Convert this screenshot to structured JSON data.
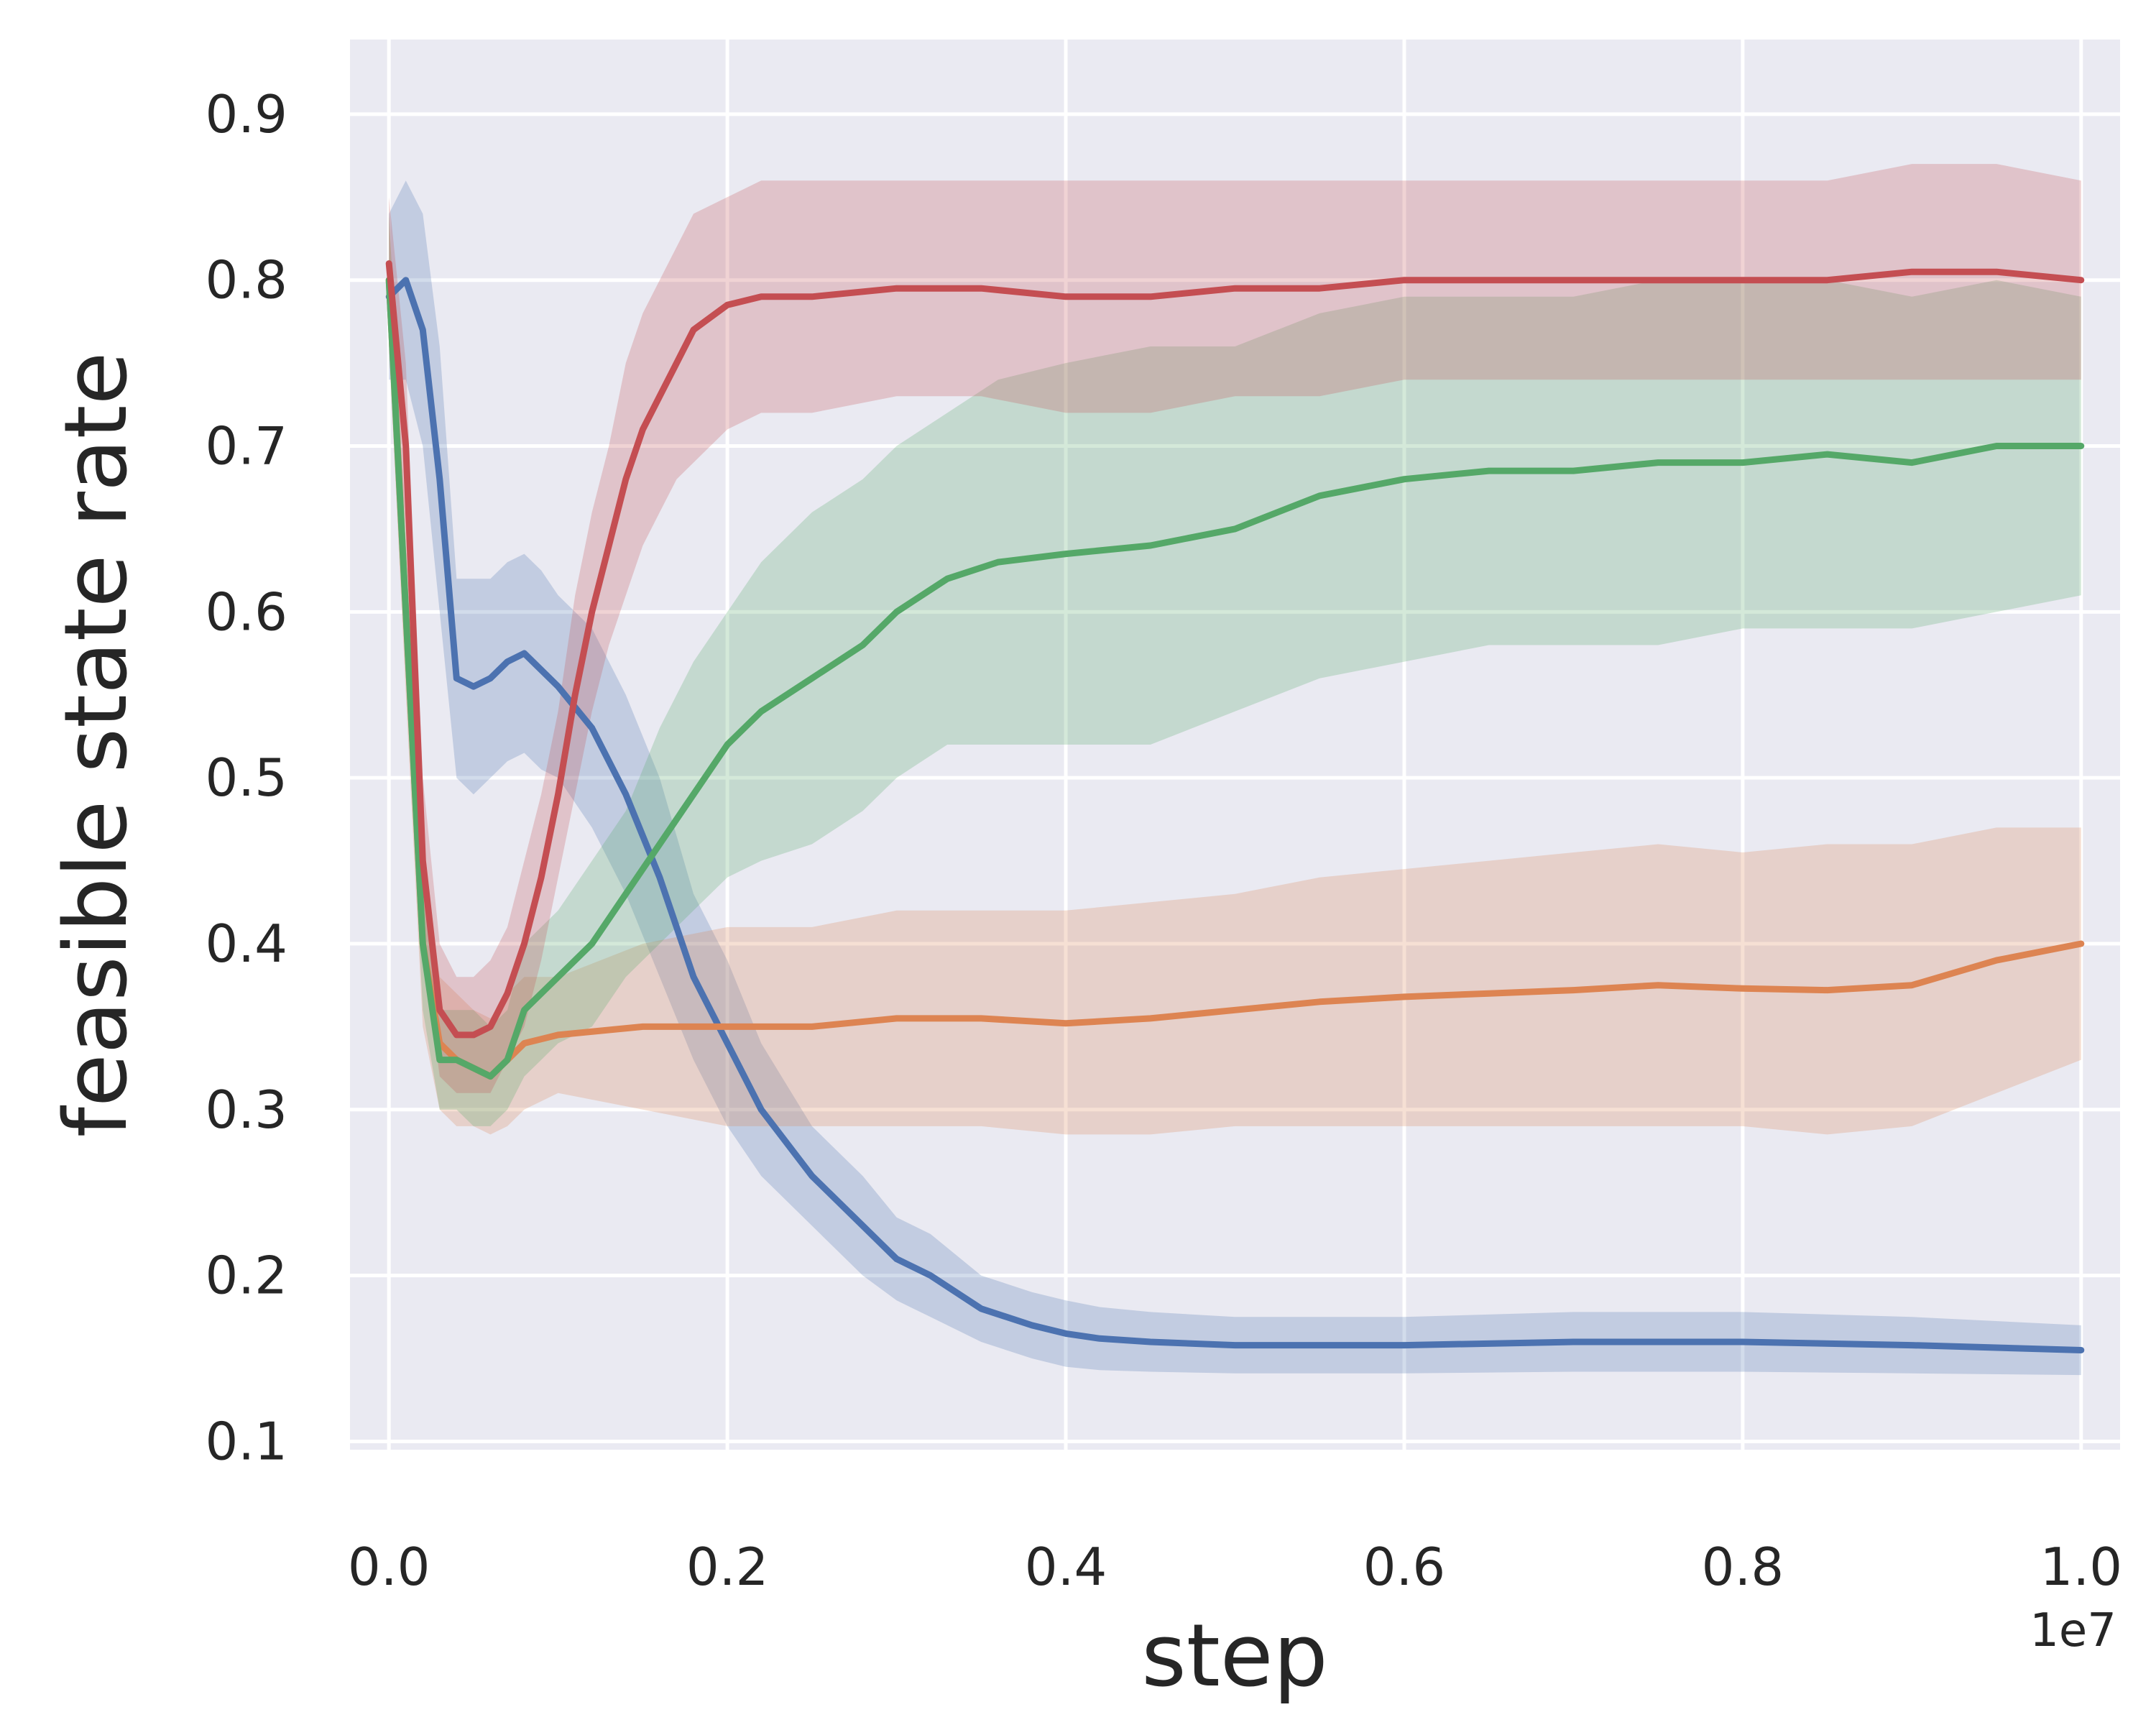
{
  "chart_data": {
    "type": "line",
    "title": "",
    "xlabel": "step",
    "ylabel": "feasible state rate",
    "x_offset_text": "1e7",
    "xlim": [
      -0.023,
      1.023
    ],
    "ylim": [
      0.095,
      0.945
    ],
    "xticks": [
      0.0,
      0.2,
      0.4,
      0.6,
      0.8,
      1.0
    ],
    "xtick_labels": [
      "0.0",
      "0.2",
      "0.4",
      "0.6",
      "0.8",
      "1.0"
    ],
    "yticks": [
      0.1,
      0.2,
      0.3,
      0.4,
      0.5,
      0.6,
      0.7,
      0.8,
      0.9
    ],
    "ytick_labels": [
      "0.1",
      "0.2",
      "0.3",
      "0.4",
      "0.5",
      "0.6",
      "0.7",
      "0.8",
      "0.9"
    ],
    "grid": true,
    "background": "#eaeaf2",
    "legend": "none",
    "series": [
      {
        "name": "blue",
        "color": "#4c72b0",
        "x": [
          0.0,
          0.01,
          0.02,
          0.03,
          0.04,
          0.05,
          0.06,
          0.07,
          0.08,
          0.09,
          0.1,
          0.12,
          0.14,
          0.16,
          0.18,
          0.2,
          0.22,
          0.25,
          0.28,
          0.3,
          0.32,
          0.35,
          0.38,
          0.4,
          0.42,
          0.45,
          0.5,
          0.6,
          0.7,
          0.8,
          0.9,
          1.0
        ],
        "y": [
          0.79,
          0.8,
          0.77,
          0.68,
          0.56,
          0.555,
          0.56,
          0.57,
          0.575,
          0.565,
          0.555,
          0.53,
          0.49,
          0.44,
          0.38,
          0.34,
          0.3,
          0.26,
          0.23,
          0.21,
          0.2,
          0.18,
          0.17,
          0.165,
          0.162,
          0.16,
          0.158,
          0.158,
          0.16,
          0.16,
          0.158,
          0.155
        ],
        "lower": [
          0.74,
          0.74,
          0.7,
          0.6,
          0.5,
          0.49,
          0.5,
          0.51,
          0.515,
          0.505,
          0.5,
          0.47,
          0.43,
          0.38,
          0.33,
          0.29,
          0.26,
          0.23,
          0.2,
          0.185,
          0.175,
          0.16,
          0.15,
          0.145,
          0.143,
          0.142,
          0.141,
          0.141,
          0.142,
          0.142,
          0.141,
          0.14
        ],
        "upper": [
          0.84,
          0.86,
          0.84,
          0.76,
          0.62,
          0.62,
          0.62,
          0.63,
          0.635,
          0.625,
          0.61,
          0.59,
          0.55,
          0.5,
          0.43,
          0.39,
          0.34,
          0.29,
          0.26,
          0.235,
          0.225,
          0.2,
          0.19,
          0.185,
          0.181,
          0.178,
          0.175,
          0.175,
          0.178,
          0.178,
          0.175,
          0.17
        ]
      },
      {
        "name": "orange",
        "color": "#dd8452",
        "x": [
          0.0,
          0.01,
          0.02,
          0.03,
          0.04,
          0.05,
          0.06,
          0.07,
          0.08,
          0.1,
          0.15,
          0.2,
          0.25,
          0.3,
          0.35,
          0.4,
          0.45,
          0.5,
          0.55,
          0.6,
          0.65,
          0.7,
          0.75,
          0.8,
          0.85,
          0.9,
          0.95,
          1.0
        ],
        "y": [
          0.8,
          0.6,
          0.4,
          0.34,
          0.33,
          0.325,
          0.32,
          0.33,
          0.34,
          0.345,
          0.35,
          0.35,
          0.35,
          0.355,
          0.355,
          0.352,
          0.355,
          0.36,
          0.365,
          0.368,
          0.37,
          0.372,
          0.375,
          0.373,
          0.372,
          0.375,
          0.39,
          0.4
        ],
        "lower": [
          0.76,
          0.55,
          0.35,
          0.3,
          0.29,
          0.29,
          0.285,
          0.29,
          0.3,
          0.31,
          0.3,
          0.29,
          0.29,
          0.29,
          0.29,
          0.285,
          0.285,
          0.29,
          0.29,
          0.29,
          0.29,
          0.29,
          0.29,
          0.29,
          0.285,
          0.29,
          0.31,
          0.33
        ],
        "upper": [
          0.84,
          0.65,
          0.45,
          0.38,
          0.37,
          0.36,
          0.355,
          0.37,
          0.38,
          0.38,
          0.4,
          0.41,
          0.41,
          0.42,
          0.42,
          0.42,
          0.425,
          0.43,
          0.44,
          0.445,
          0.45,
          0.455,
          0.46,
          0.455,
          0.46,
          0.46,
          0.47,
          0.47
        ]
      },
      {
        "name": "green",
        "color": "#55a868",
        "x": [
          0.0,
          0.01,
          0.02,
          0.03,
          0.04,
          0.05,
          0.06,
          0.07,
          0.08,
          0.09,
          0.1,
          0.12,
          0.14,
          0.16,
          0.18,
          0.2,
          0.22,
          0.25,
          0.28,
          0.3,
          0.33,
          0.36,
          0.4,
          0.45,
          0.5,
          0.55,
          0.6,
          0.65,
          0.7,
          0.75,
          0.8,
          0.85,
          0.9,
          0.95,
          1.0
        ],
        "y": [
          0.8,
          0.6,
          0.4,
          0.33,
          0.33,
          0.325,
          0.32,
          0.33,
          0.36,
          0.37,
          0.38,
          0.4,
          0.43,
          0.46,
          0.49,
          0.52,
          0.54,
          0.56,
          0.58,
          0.6,
          0.62,
          0.63,
          0.635,
          0.64,
          0.65,
          0.67,
          0.68,
          0.685,
          0.685,
          0.69,
          0.69,
          0.695,
          0.69,
          0.7,
          0.7
        ],
        "lower": [
          0.76,
          0.56,
          0.36,
          0.3,
          0.3,
          0.29,
          0.29,
          0.3,
          0.32,
          0.33,
          0.34,
          0.35,
          0.38,
          0.4,
          0.42,
          0.44,
          0.45,
          0.46,
          0.48,
          0.5,
          0.52,
          0.52,
          0.52,
          0.52,
          0.54,
          0.56,
          0.57,
          0.58,
          0.58,
          0.58,
          0.59,
          0.59,
          0.59,
          0.6,
          0.61
        ],
        "upper": [
          0.84,
          0.64,
          0.44,
          0.36,
          0.36,
          0.36,
          0.35,
          0.36,
          0.4,
          0.41,
          0.42,
          0.45,
          0.48,
          0.53,
          0.57,
          0.6,
          0.63,
          0.66,
          0.68,
          0.7,
          0.72,
          0.74,
          0.75,
          0.76,
          0.76,
          0.78,
          0.79,
          0.79,
          0.79,
          0.8,
          0.8,
          0.8,
          0.79,
          0.8,
          0.79
        ]
      },
      {
        "name": "red",
        "color": "#c44e52",
        "x": [
          0.0,
          0.01,
          0.02,
          0.03,
          0.04,
          0.05,
          0.06,
          0.07,
          0.08,
          0.09,
          0.1,
          0.11,
          0.12,
          0.13,
          0.14,
          0.15,
          0.16,
          0.17,
          0.18,
          0.2,
          0.22,
          0.25,
          0.3,
          0.35,
          0.4,
          0.45,
          0.5,
          0.55,
          0.6,
          0.65,
          0.7,
          0.75,
          0.8,
          0.85,
          0.9,
          0.95,
          1.0
        ],
        "y": [
          0.81,
          0.7,
          0.45,
          0.36,
          0.345,
          0.345,
          0.35,
          0.37,
          0.4,
          0.44,
          0.49,
          0.55,
          0.6,
          0.64,
          0.68,
          0.71,
          0.73,
          0.75,
          0.77,
          0.785,
          0.79,
          0.79,
          0.795,
          0.795,
          0.79,
          0.79,
          0.795,
          0.795,
          0.8,
          0.8,
          0.8,
          0.8,
          0.8,
          0.8,
          0.805,
          0.805,
          0.8
        ],
        "lower": [
          0.77,
          0.65,
          0.4,
          0.32,
          0.31,
          0.31,
          0.31,
          0.33,
          0.35,
          0.39,
          0.44,
          0.49,
          0.54,
          0.58,
          0.61,
          0.64,
          0.66,
          0.68,
          0.69,
          0.71,
          0.72,
          0.72,
          0.73,
          0.73,
          0.72,
          0.72,
          0.73,
          0.73,
          0.74,
          0.74,
          0.74,
          0.74,
          0.74,
          0.74,
          0.74,
          0.74,
          0.74
        ],
        "upper": [
          0.85,
          0.75,
          0.5,
          0.4,
          0.38,
          0.38,
          0.39,
          0.41,
          0.45,
          0.49,
          0.54,
          0.61,
          0.66,
          0.7,
          0.75,
          0.78,
          0.8,
          0.82,
          0.84,
          0.85,
          0.86,
          0.86,
          0.86,
          0.86,
          0.86,
          0.86,
          0.86,
          0.86,
          0.86,
          0.86,
          0.86,
          0.86,
          0.86,
          0.86,
          0.87,
          0.87,
          0.86
        ]
      }
    ]
  }
}
